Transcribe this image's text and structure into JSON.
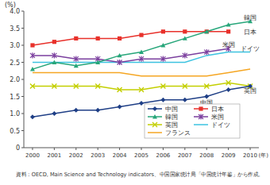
{
  "chart_data": {
    "type": "line",
    "y_label": "(%)",
    "x_label": "(年)",
    "note": "資料：OECD, Main Science and Technology indicators、中国国家统计局「中国统计年鉴」から作成。",
    "x": [
      2000,
      2001,
      2002,
      2003,
      2004,
      2005,
      2006,
      2007,
      2008,
      2009,
      2010
    ],
    "xlim": [
      1999.6,
      2010.4
    ],
    "xticks": [
      2000,
      2001,
      2002,
      2003,
      2004,
      2005,
      2006,
      2007,
      2008,
      2009,
      2010
    ],
    "ylim": [
      0,
      4
    ],
    "yticks": [
      0,
      0.5,
      {
        "value": 1,
        "label": "1.0"
      },
      1.5,
      {
        "value": 2,
        "label": "2.0"
      },
      2.5,
      {
        "value": 3,
        "label": "3.0"
      },
      3.5,
      {
        "value": 4,
        "label": "4.0"
      }
    ],
    "grid": false,
    "legend": "lower right",
    "series": [
      {
        "name": "中国",
        "color": "#1f3f86",
        "marker": "diamond",
        "values": [
          0.9,
          1.0,
          1.1,
          1.1,
          1.2,
          1.3,
          1.4,
          1.4,
          1.5,
          1.7,
          1.8
        ]
      },
      {
        "name": "日本",
        "color": "#e8312b",
        "marker": "square",
        "values": [
          3.0,
          3.1,
          3.2,
          3.2,
          3.2,
          3.3,
          3.4,
          3.4,
          3.4,
          3.4,
          null
        ]
      },
      {
        "name": "韓国",
        "color": "#27a67a",
        "marker": "triangle",
        "values": [
          2.3,
          2.5,
          2.4,
          2.5,
          2.7,
          2.8,
          3.0,
          3.2,
          3.4,
          3.6,
          3.7
        ]
      },
      {
        "name": "米国",
        "color": "#7b3f9e",
        "marker": "star",
        "values": [
          2.7,
          2.7,
          2.6,
          2.6,
          2.5,
          2.6,
          2.6,
          2.7,
          2.8,
          2.9,
          null
        ]
      },
      {
        "name": "英国",
        "color": "#c3cf00",
        "marker": "x",
        "values": [
          1.8,
          1.8,
          1.8,
          1.8,
          1.7,
          1.7,
          1.8,
          1.8,
          1.8,
          1.9,
          1.8
        ]
      },
      {
        "name": "ドイツ",
        "color": "#3cc3e0",
        "marker": "none",
        "values": [
          2.5,
          2.5,
          2.5,
          2.5,
          2.5,
          2.5,
          2.5,
          2.5,
          2.7,
          2.8,
          2.8
        ]
      },
      {
        "name": "フランス",
        "color": "#f5a623",
        "marker": "none",
        "values": [
          2.2,
          2.2,
          2.2,
          2.2,
          2.2,
          2.1,
          2.1,
          2.1,
          2.1,
          2.2,
          2.3
        ]
      }
    ],
    "annotations": [
      {
        "text": "韓国",
        "x": 2010,
        "y": 3.82
      },
      {
        "text": "日本",
        "x": 2010,
        "y": 3.4
      },
      {
        "text": "米国",
        "x": 2009,
        "y": 3.02
      },
      {
        "text": "ドイツ",
        "x": 2010,
        "y": 2.9
      },
      {
        "text": "中国",
        "x": 2008,
        "y": 1.33
      },
      {
        "text": "英国",
        "x": 2010,
        "y": 1.68
      }
    ]
  }
}
